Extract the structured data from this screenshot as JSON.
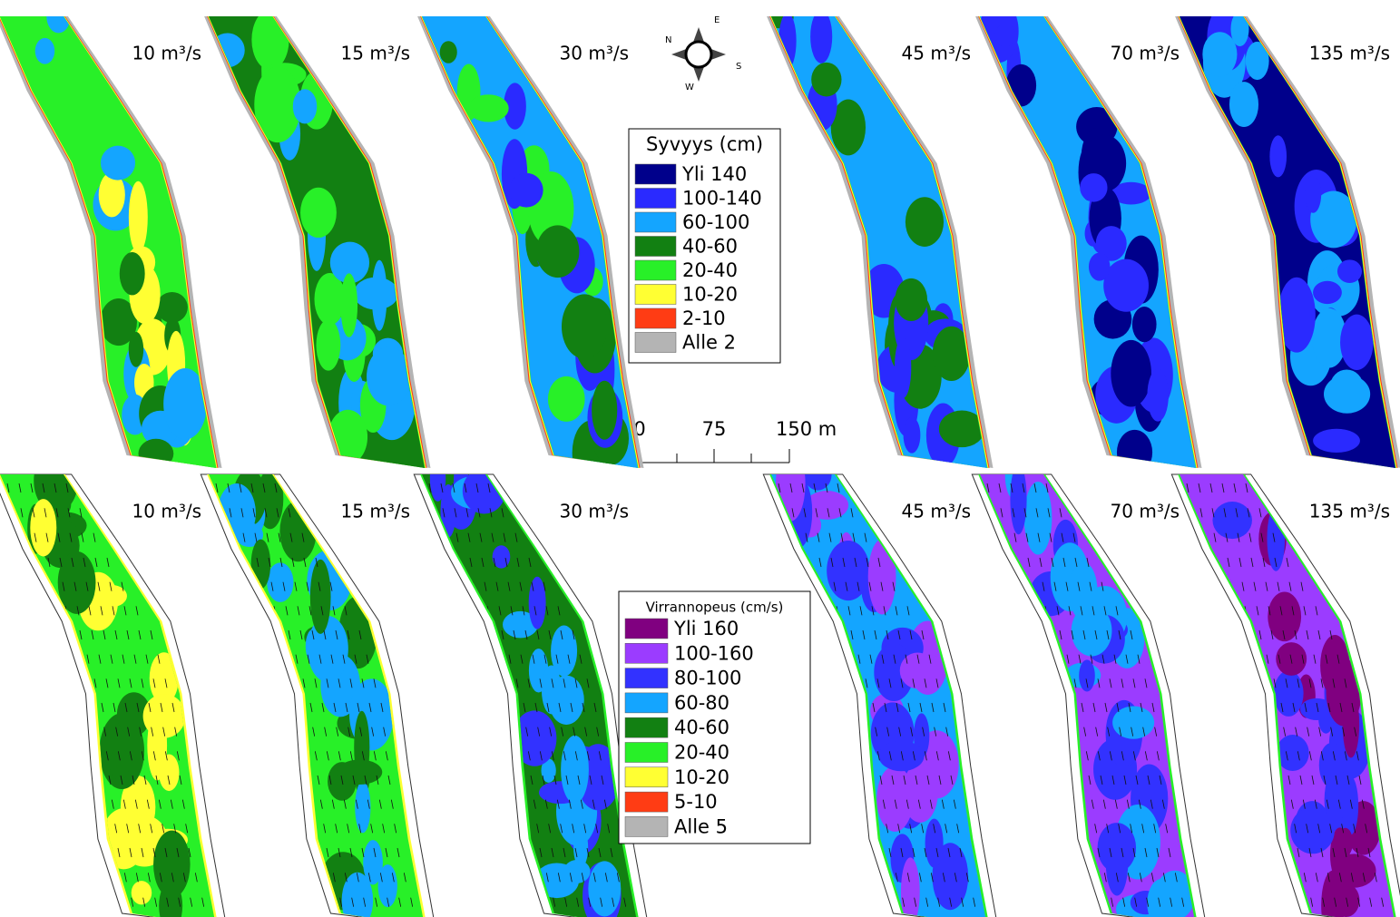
{
  "depth_panels": [
    "10 m³/s",
    "15 m³/s",
    "30 m³/s",
    "45 m³/s",
    "70 m³/s",
    "135 m³/s"
  ],
  "velocity_panels": [
    "10 m³/s",
    "15 m³/s",
    "30 m³/s",
    "45 m³/s",
    "70 m³/s",
    "135 m³/s"
  ],
  "compass": [
    "N",
    "E",
    "S",
    "W"
  ],
  "scale_bar": [
    "0",
    "75",
    "150 m"
  ],
  "depth_legend": {
    "title": "Syvyys (cm)",
    "items": [
      {
        "label": "Yli 140",
        "color": "#00008b"
      },
      {
        "label": "100-140",
        "color": "#2a2aff"
      },
      {
        "label": "60-100",
        "color": "#14a5ff"
      },
      {
        "label": "40-60",
        "color": "#128012"
      },
      {
        "label": "20-40",
        "color": "#28f028"
      },
      {
        "label": "10-20",
        "color": "#ffff33"
      },
      {
        "label": "2-10",
        "color": "#ff3c14"
      },
      {
        "label": "Alle 2",
        "color": "#b4b4b4"
      }
    ]
  },
  "velocity_legend": {
    "title": "Virrannopeus (cm/s)",
    "items": [
      {
        "label": "Yli 160",
        "color": "#800080"
      },
      {
        "label": "100-160",
        "color": "#9b3cff"
      },
      {
        "label": "80-100",
        "color": "#3232ff"
      },
      {
        "label": "60-80",
        "color": "#14a5ff"
      },
      {
        "label": "40-60",
        "color": "#128012"
      },
      {
        "label": "20-40",
        "color": "#28f028"
      },
      {
        "label": "10-20",
        "color": "#ffff33"
      },
      {
        "label": "5-10",
        "color": "#ff3c14"
      },
      {
        "label": "Alle 5",
        "color": "#b4b4b4"
      }
    ]
  }
}
